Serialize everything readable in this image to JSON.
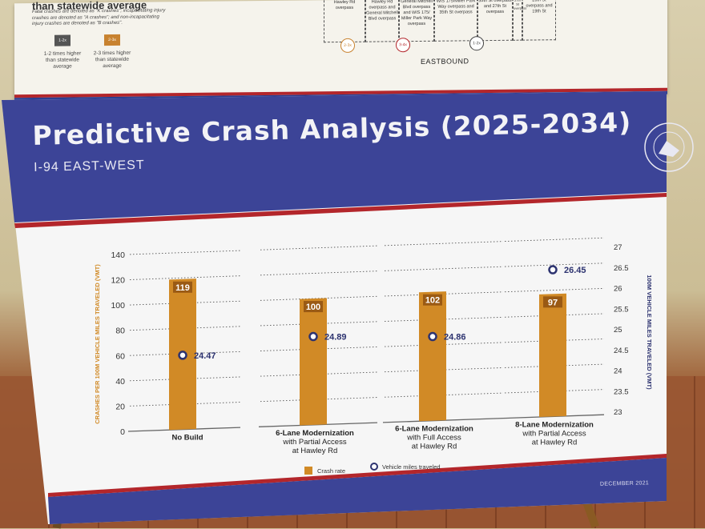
{
  "top_board": {
    "heading": "than statewide average",
    "note": "Fatal crashes are denoted as \"K crashes\"; incapacitating injury crashes are denoted as \"A crashes\"; and non-incapacitating injury crashes are denoted as \"B crashes\".",
    "legend": [
      {
        "badge": "1-2x",
        "label": "1-2 times higher than statewide average",
        "color": "#555555"
      },
      {
        "badge": "2-3x",
        "label": "2-3 times higher than statewide average",
        "color": "#c8822f"
      }
    ],
    "segments": [
      {
        "text": "Hawley Rd overpass"
      },
      {
        "text": "Hawley Rd overpass and General Mitchell Blvd overpass"
      },
      {
        "text": "General Mitchell Blvd overpass and WIS 175/ Miller Park Way overpass"
      },
      {
        "text": "WIS 175/Miller Park Way overpass and 35th St overpass"
      },
      {
        "text": "35th St overpass and 27th St overpass"
      },
      {
        "text": "27th St overpass"
      },
      {
        "text": "26th St overpass and 19th St"
      }
    ],
    "badges": [
      {
        "label": "2-3x",
        "color": "#c8822f"
      },
      {
        "label": "3-4x",
        "color": "#b3262b"
      },
      {
        "label": "1-2x",
        "color": "#444444"
      }
    ],
    "direction": "EASTBOUND"
  },
  "header": {
    "title": "Predictive Crash Analysis (2025-2034)",
    "subtitle": "I-94 EAST-WEST",
    "logo_text": "WISCONSIN DEPARTMENT OF TRANSPORTATION"
  },
  "footer": {
    "date": "DECEMBER 2021"
  },
  "colors": {
    "navy": "#3c4497",
    "red": "#b3262b",
    "bar": "#d18a26",
    "bar_label_bg": "#9a5a14",
    "panel": "#f6f6f6"
  },
  "chart_data": {
    "type": "bar",
    "categories": [
      "No Build",
      "6-Lane Modernization with Partial Access at Hawley Rd",
      "6-Lane Modernization with Full Access at Hawley Rd",
      "8-Lane Modernization with Partial Access at Hawley Rd"
    ],
    "category_lines": [
      [
        "No Build"
      ],
      [
        "6-Lane Modernization",
        "with Partial Access",
        "at Hawley Rd"
      ],
      [
        "6-Lane Modernization",
        "with Full Access",
        "at Hawley Rd"
      ],
      [
        "8-Lane Modernization",
        "with Partial Access",
        "at Hawley Rd"
      ]
    ],
    "series": [
      {
        "name": "Crash rate",
        "type": "bar",
        "axis": "left",
        "values": [
          119,
          100,
          102,
          97
        ]
      },
      {
        "name": "Vehicle miles traveled",
        "type": "point",
        "axis": "right",
        "values": [
          24.47,
          24.89,
          24.86,
          26.45
        ]
      }
    ],
    "ylabel": "CRASHES PER 100M VEHICLE MILES TRAVELED (VMT)",
    "ylim": [
      0,
      140
    ],
    "yticks": [
      0,
      20,
      40,
      60,
      80,
      100,
      120,
      140
    ],
    "y2label": "100M VEHICLE MILES TRAVELED (VMT)",
    "y2lim": [
      23,
      27
    ],
    "y2ticks": [
      "23",
      "23.5",
      "24",
      "24.5",
      "25",
      "25.5",
      "26",
      "26.5",
      "27"
    ],
    "grid": true,
    "legend_position": "bottom"
  }
}
